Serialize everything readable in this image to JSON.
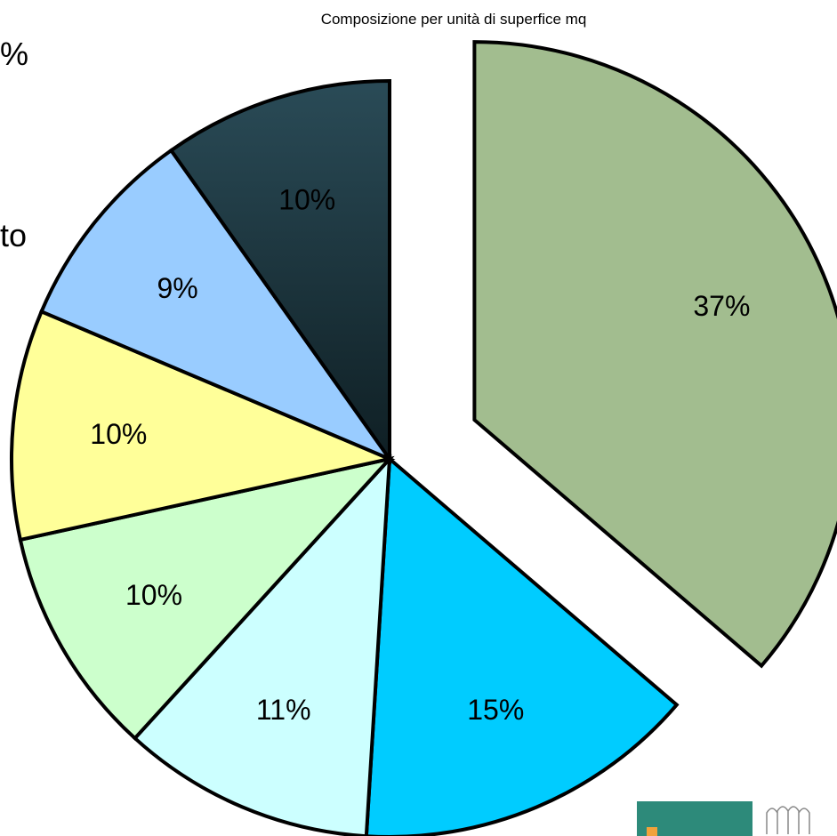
{
  "chart_data": {
    "type": "pie",
    "title": "Composizione per unità di superfice mq",
    "slices": [
      {
        "label": "37%",
        "value": 37,
        "color": "#a2bd8f",
        "exploded": true
      },
      {
        "label": "15%",
        "value": 15,
        "color": "#00ccff"
      },
      {
        "label": "11%",
        "value": 11,
        "color": "#ccffff"
      },
      {
        "label": "10%",
        "value": 10,
        "color": "#ccffcc"
      },
      {
        "label": "10%",
        "value": 10,
        "color": "#ffff99"
      },
      {
        "label": "9%",
        "value": 9,
        "color": "#99ccff"
      },
      {
        "label": "10%",
        "value": 10,
        "color": "#1f3a45"
      }
    ],
    "legend": false
  },
  "fragments": {
    "left_top": "%",
    "left_mid": "to"
  }
}
